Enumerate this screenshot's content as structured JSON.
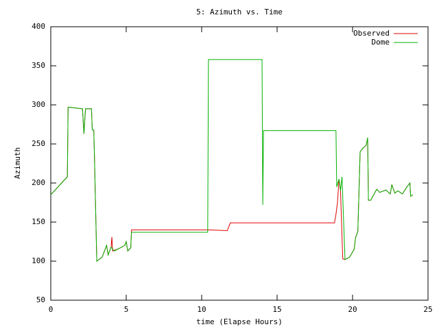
{
  "chart_data": {
    "type": "line",
    "title": "5: Azimuth vs. Time",
    "x_label": "time (Elapse Hours)",
    "y_label": "Azimuth",
    "xlim": [
      0,
      25
    ],
    "xticks": [
      0,
      5,
      10,
      15,
      20,
      25
    ],
    "ylim": [
      50,
      400
    ],
    "yticks": [
      50,
      100,
      150,
      200,
      250,
      300,
      350,
      400
    ],
    "legend": "top-right",
    "series": [
      {
        "name": "Observed",
        "color": "#e00000",
        "x": [
          0,
          1.1,
          1.15,
          1.2,
          2.1,
          2.2,
          2.3,
          2.7,
          2.75,
          2.85,
          2.9,
          3.05,
          3.4,
          3.7,
          3.8,
          4.0,
          4.05,
          4.1,
          4.5,
          4.9,
          5.0,
          5.1,
          5.3,
          5.35,
          10.45,
          11.7,
          11.9,
          18.8,
          18.9,
          19.0,
          19.1,
          19.2,
          19.35,
          19.5,
          19.8,
          20.1,
          20.2,
          20.35,
          20.5,
          20.7,
          20.9,
          21.0,
          21.05,
          21.2,
          21.4,
          21.6,
          21.8,
          22.2,
          22.5,
          22.6,
          22.8,
          23.0,
          23.3,
          23.6,
          23.8,
          23.85,
          24.0
        ],
        "values": [
          185,
          208,
          297,
          297,
          295,
          263,
          295,
          295,
          268,
          268,
          230,
          100,
          105,
          120,
          108,
          118,
          131,
          113,
          116,
          120,
          125,
          113,
          117,
          140,
          140,
          139,
          149,
          149,
          160,
          175,
          205,
          190,
          103,
          102,
          105,
          115,
          130,
          138,
          240,
          245,
          248,
          258,
          178,
          178,
          185,
          192,
          188,
          191,
          186,
          198,
          187,
          190,
          186,
          195,
          200,
          183,
          185
        ]
      },
      {
        "name": "Dome",
        "color": "#00b000",
        "x": [
          0,
          1.1,
          1.15,
          1.2,
          2.1,
          2.2,
          2.3,
          2.7,
          2.75,
          2.85,
          2.9,
          3.05,
          3.4,
          3.7,
          3.8,
          4.0,
          4.2,
          4.5,
          4.9,
          5.0,
          5.1,
          5.3,
          5.35,
          10.4,
          10.45,
          14.0,
          14.05,
          14.1,
          18.9,
          18.95,
          19.1,
          19.2,
          19.3,
          19.5,
          19.8,
          20.1,
          20.2,
          20.35,
          20.5,
          20.7,
          20.9,
          21.0,
          21.05,
          21.2,
          21.4,
          21.6,
          21.8,
          22.2,
          22.5,
          22.6,
          22.8,
          23.0,
          23.3,
          23.6,
          23.8,
          23.85,
          24.0
        ],
        "values": [
          185,
          208,
          297,
          297,
          295,
          263,
          295,
          295,
          268,
          268,
          230,
          100,
          105,
          120,
          108,
          118,
          113,
          116,
          120,
          125,
          113,
          117,
          137,
          137,
          358,
          358,
          172,
          267,
          267,
          195,
          205,
          190,
          208,
          102,
          105,
          115,
          130,
          138,
          240,
          245,
          248,
          258,
          178,
          178,
          185,
          192,
          188,
          191,
          186,
          198,
          187,
          190,
          186,
          195,
          200,
          183,
          185
        ]
      }
    ]
  }
}
